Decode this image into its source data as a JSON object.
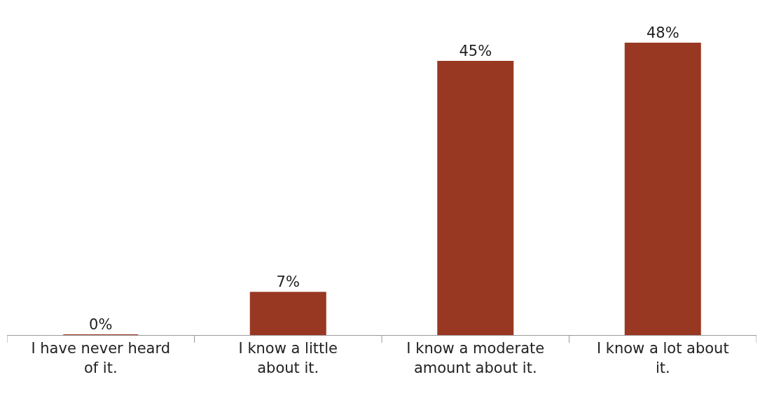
{
  "chart_data": {
    "type": "bar",
    "categories": [
      "I have never heard of it.",
      "I know a little about it.",
      "I know a moderate amount about it.",
      "I know a lot about it."
    ],
    "values": [
      0,
      7,
      45,
      48
    ],
    "value_labels": [
      "0%",
      "7%",
      "45%",
      "48%"
    ],
    "color": "#993822",
    "legend": false
  }
}
